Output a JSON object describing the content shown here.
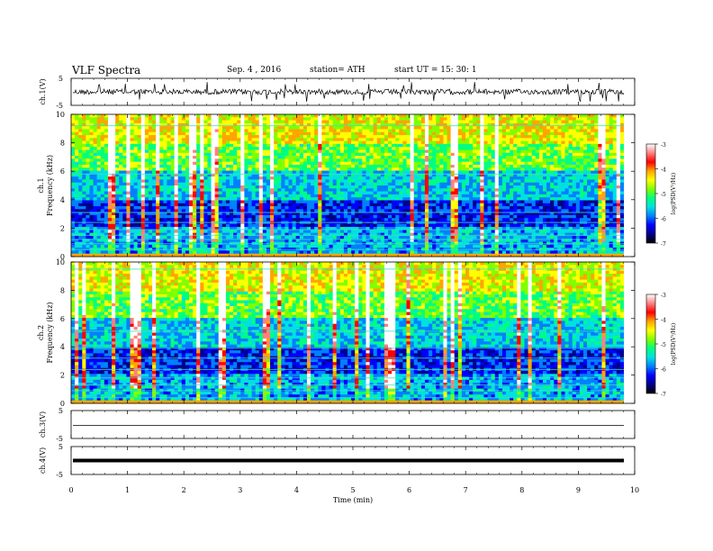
{
  "header": {
    "title": "VLF  Spectra",
    "date": "Sep. 4  , 2016",
    "station": "station= ATH",
    "start": "start  UT =   15: 30: 1"
  },
  "chart_data": [
    {
      "type": "line",
      "ylabel": "ch.1(V)",
      "ylim": [
        -5,
        5
      ],
      "yticks": [
        "5",
        "-5"
      ],
      "xlim": [
        0,
        10
      ],
      "signal": "noisy waveform, amplitude ~ ±1.5 V around 0"
    },
    {
      "type": "heatmap",
      "ylabel": "ch.1\nFrequency  (kHz)",
      "ylim": [
        0,
        10
      ],
      "yticks": [
        "0",
        "2",
        "4",
        "6",
        "8",
        "10"
      ],
      "xlim": [
        0,
        10
      ],
      "colorbar": {
        "label": "log(PSD(V²/Hz)",
        "range": [
          -7,
          -3
        ],
        "ticks": [
          "-3",
          "-4",
          "-5",
          "-6",
          "-7"
        ]
      }
    },
    {
      "type": "heatmap",
      "ylabel": "ch.2\nFrequency  (kHz)",
      "ylim": [
        0,
        10
      ],
      "yticks": [
        "0",
        "2",
        "4",
        "6",
        "8",
        "10"
      ],
      "xlim": [
        0,
        10
      ],
      "colorbar": {
        "label": "log(PSD(V²/Hz)",
        "range": [
          -7,
          -3
        ],
        "ticks": [
          "-3",
          "-4",
          "-5",
          "-6",
          "-7"
        ]
      }
    },
    {
      "type": "line",
      "ylabel": "ch.3(V)",
      "ylim": [
        -5,
        5
      ],
      "yticks": [
        "5",
        "-5"
      ],
      "xlim": [
        0,
        10
      ],
      "signal": "flat line near 0 V"
    },
    {
      "type": "line",
      "ylabel": "ch.4(V)",
      "ylim": [
        -5,
        5
      ],
      "yticks": [
        "5",
        "-5"
      ],
      "xlim": [
        0,
        10
      ],
      "signal": "thick flat line near 0 V"
    }
  ],
  "xaxis": {
    "label": "Time  (min)",
    "ticks": [
      "0",
      "1",
      "2",
      "3",
      "4",
      "5",
      "6",
      "7",
      "8",
      "9",
      "10"
    ]
  },
  "colors": {
    "colormap": [
      "#000000",
      "#00008b",
      "#0000ff",
      "#0080ff",
      "#00e0e0",
      "#00ff80",
      "#80ff00",
      "#ffff00",
      "#ffa500",
      "#ff0000",
      "#ff8080",
      "#ffffff"
    ]
  }
}
